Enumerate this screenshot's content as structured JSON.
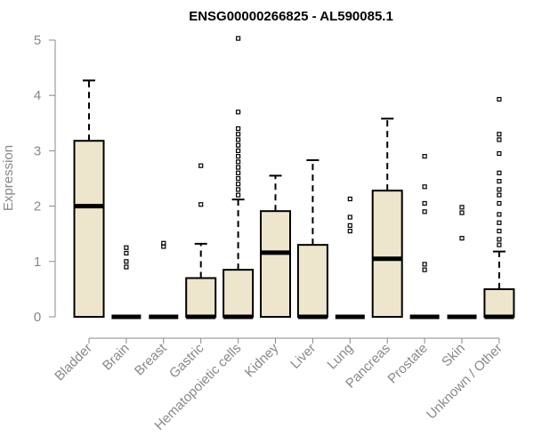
{
  "chart_data": {
    "type": "box",
    "title": "ENSG00000266825 - AL590085.1",
    "xlabel": "",
    "ylabel": "Expression",
    "ylim": [
      0,
      5
    ],
    "yticks": [
      0,
      1,
      2,
      3,
      4,
      5
    ],
    "grid": false,
    "legend": "none",
    "box_fill": "#ede6cc",
    "categories": [
      "Bladder",
      "Brain",
      "Breast",
      "Gastric",
      "Hematopoietic cells",
      "Kidney",
      "Liver",
      "Lung",
      "Pancreas",
      "Prostate",
      "Skin",
      "Unknown / Other"
    ],
    "boxes": [
      {
        "min": 0,
        "q1": 0,
        "median": 2.0,
        "q3": 3.18,
        "max": 4.27,
        "outliers": []
      },
      {
        "min": 0,
        "q1": 0,
        "median": 0,
        "q3": 0,
        "max": 0,
        "outliers": [
          0.9,
          1.0,
          1.15,
          1.25
        ]
      },
      {
        "min": 0,
        "q1": 0,
        "median": 0,
        "q3": 0,
        "max": 0,
        "outliers": [
          1.27,
          1.33
        ]
      },
      {
        "min": 0,
        "q1": 0,
        "median": 0,
        "q3": 0.7,
        "max": 1.32,
        "outliers": [
          2.03,
          2.73
        ]
      },
      {
        "min": 0,
        "q1": 0,
        "median": 0,
        "q3": 0.85,
        "max": 2.12,
        "outliers": [
          2.2,
          2.3,
          2.4,
          2.5,
          2.6,
          2.7,
          2.8,
          2.9,
          3.0,
          3.1,
          3.2,
          3.3,
          3.4,
          3.7,
          5.03
        ]
      },
      {
        "min": 0,
        "q1": 0,
        "median": 1.16,
        "q3": 1.91,
        "max": 2.55,
        "outliers": []
      },
      {
        "min": 0,
        "q1": 0,
        "median": 0,
        "q3": 1.3,
        "max": 2.83,
        "outliers": []
      },
      {
        "min": 0,
        "q1": 0,
        "median": 0,
        "q3": 0,
        "max": 0,
        "outliers": [
          1.55,
          1.65,
          1.8,
          2.13
        ]
      },
      {
        "min": 0,
        "q1": 0,
        "median": 1.05,
        "q3": 2.28,
        "max": 3.58,
        "outliers": []
      },
      {
        "min": 0,
        "q1": 0,
        "median": 0,
        "q3": 0,
        "max": 0,
        "outliers": [
          0.85,
          0.95,
          1.9,
          2.05,
          2.35,
          2.9
        ]
      },
      {
        "min": 0,
        "q1": 0,
        "median": 0,
        "q3": 0,
        "max": 0,
        "outliers": [
          1.42,
          1.88,
          1.98
        ]
      },
      {
        "min": 0,
        "q1": 0,
        "median": 0,
        "q3": 0.5,
        "max": 1.18,
        "outliers": [
          1.3,
          1.4,
          1.55,
          1.7,
          1.85,
          2.05,
          2.2,
          2.3,
          2.45,
          2.6,
          2.95,
          3.2,
          3.3,
          3.93
        ]
      }
    ]
  }
}
